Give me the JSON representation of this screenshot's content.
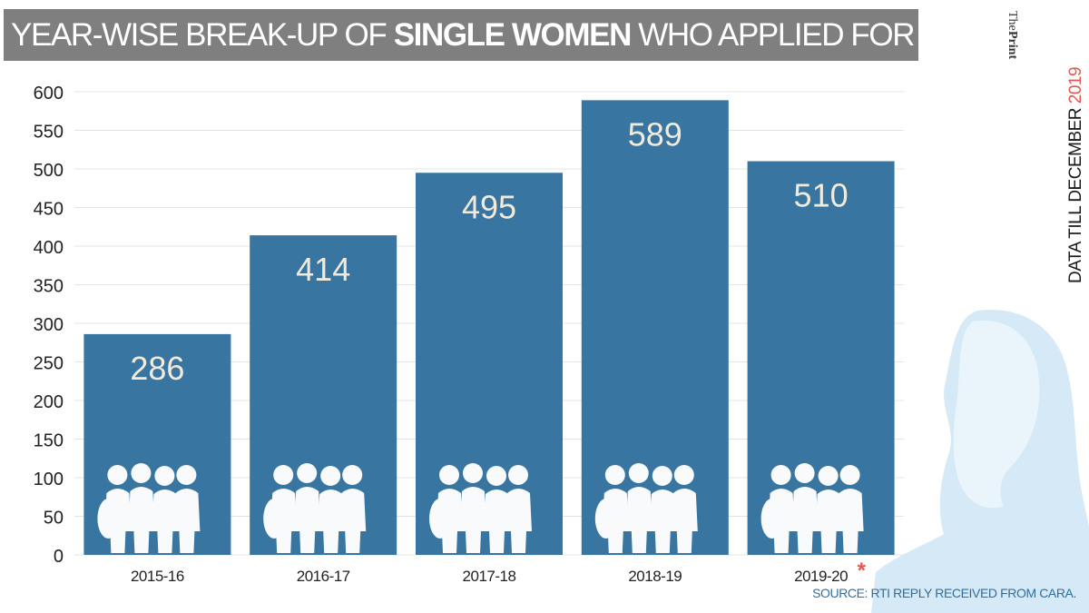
{
  "title": {
    "prefix": "YEAR-WISE BREAK-UP OF ",
    "highlight": "SINGLE WOMEN",
    "suffix": " WHO APPLIED FOR ADOPTION"
  },
  "brand": {
    "the": "The",
    "print": "Print"
  },
  "side_note": {
    "text": "DATA TILL DECEMBER ",
    "year": "2019"
  },
  "source": "SOURCE: RTI REPLY RECEIVED FROM CARA.",
  "footnote_marker": "*",
  "colors": {
    "bar": "#3876a1",
    "banner": "#7f7f7f",
    "bar_label": "#f2ebdc",
    "accent_red": "#e8544f",
    "source": "#2e6f9e",
    "silhouette": "#d5e9f7"
  },
  "chart_data": {
    "type": "bar",
    "title": "YEAR-WISE BREAK-UP OF SINGLE WOMEN WHO APPLIED FOR ADOPTION",
    "categories": [
      "2015-16",
      "2016-17",
      "2017-18",
      "2018-19",
      "2019-20"
    ],
    "values": [
      286,
      414,
      495,
      589,
      510
    ],
    "data_labels": [
      "286",
      "414",
      "495",
      "589",
      "510"
    ],
    "xlabel": "",
    "ylabel": "",
    "ylim": [
      0,
      600
    ],
    "yticks": [
      0,
      50,
      100,
      150,
      200,
      250,
      300,
      350,
      400,
      450,
      500,
      550,
      600
    ],
    "grid": true,
    "legend": "none",
    "annotations": [
      {
        "category": "2019-20",
        "text": "*"
      }
    ]
  }
}
